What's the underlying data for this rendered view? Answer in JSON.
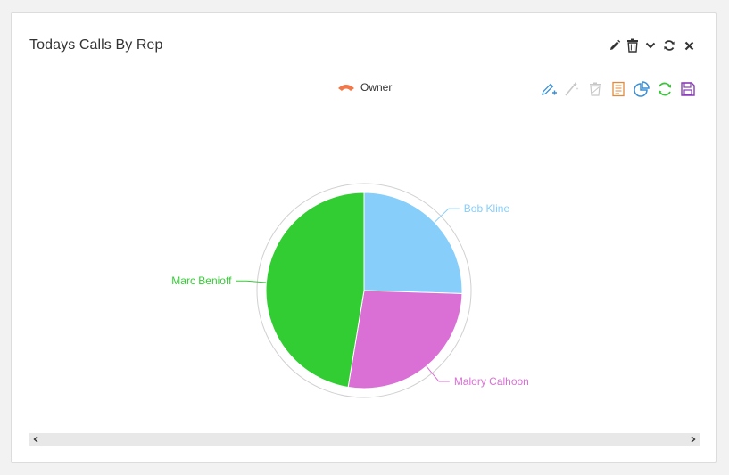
{
  "panel": {
    "title": "Todays Calls By Rep"
  },
  "header_tools": [
    {
      "name": "edit-icon"
    },
    {
      "name": "trash-icon"
    },
    {
      "name": "chevron-down-icon"
    },
    {
      "name": "refresh-icon"
    },
    {
      "name": "close-icon"
    }
  ],
  "chart_toolbar": [
    {
      "name": "edit-add-icon",
      "color": "#3b8fd6"
    },
    {
      "name": "wand-icon",
      "color": "#c8c8c8"
    },
    {
      "name": "trash-disabled-icon",
      "color": "#c8c8c8"
    },
    {
      "name": "document-icon",
      "color": "#e08a3c"
    },
    {
      "name": "pie-chart-icon",
      "color": "#3b8fd6"
    },
    {
      "name": "refresh-green-icon",
      "color": "#3cc23c"
    },
    {
      "name": "save-icon",
      "color": "#8a3cb8"
    }
  ],
  "legend": {
    "label": "Owner",
    "color": "#f0784a"
  },
  "chart_data": {
    "type": "pie",
    "title": "",
    "series_name": "Owner",
    "slices": [
      {
        "label": "Bob Kline",
        "value": 25.5,
        "color": "#87cefa"
      },
      {
        "label": "Malory Calhoon",
        "value": 27.1,
        "color": "#da70d6"
      },
      {
        "label": "Marc Benioff",
        "value": 47.4,
        "color": "#32cd32"
      }
    ]
  }
}
